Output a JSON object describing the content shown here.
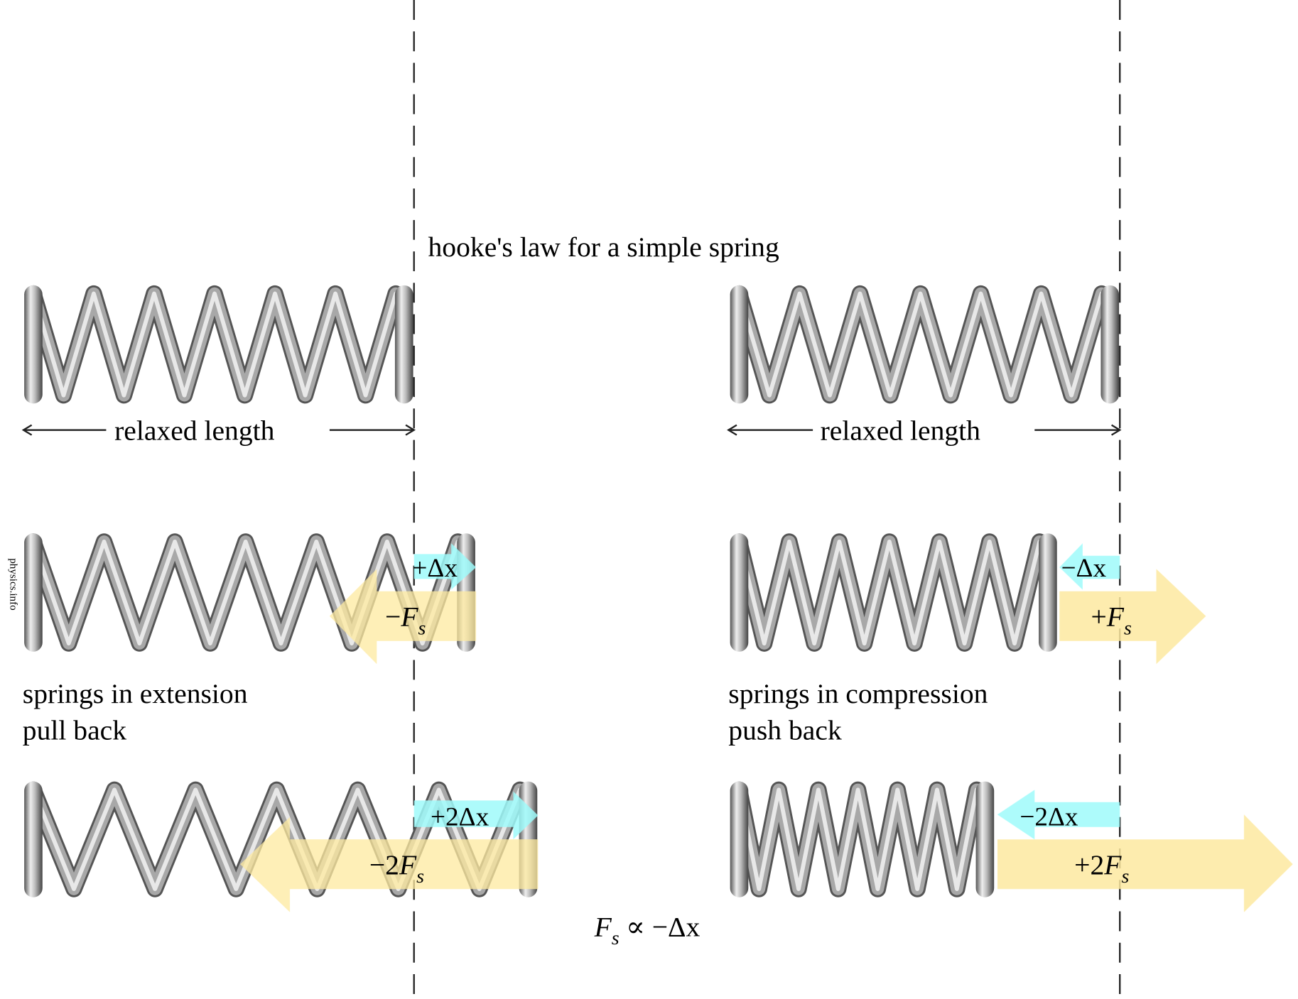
{
  "title": "hooke's law for a simple spring",
  "relaxed_label": "relaxed length",
  "watermark": "physics.info",
  "extension": {
    "caption_line1": "springs in extension",
    "caption_line2": "pull back",
    "dx1": "+Δx",
    "f1_sign": "−",
    "dx2": "+2Δx",
    "f2_sign": "−2"
  },
  "compression": {
    "caption_line1": "springs in compression",
    "caption_line2": "push back",
    "dx1": "−Δx",
    "f1_sign": "+",
    "dx2": "−2Δx",
    "f2_sign": "+2"
  },
  "force_symbol": "F",
  "force_subscript": "s",
  "law": {
    "prefix": "∝ −Δx"
  },
  "colors": {
    "displacement": "#9ffbfb",
    "force": "#fde9a0",
    "spring": "#a8a8a8"
  }
}
